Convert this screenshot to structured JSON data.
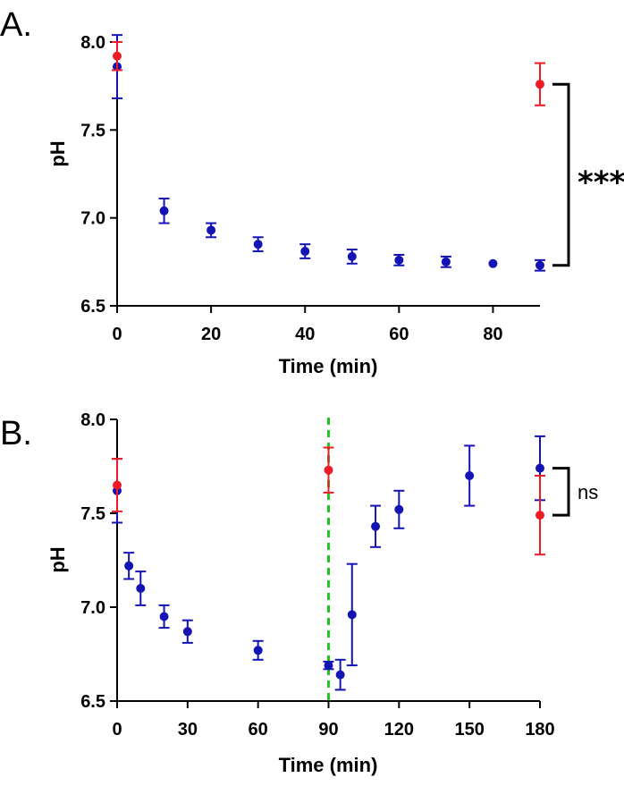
{
  "colors": {
    "blue": "#1414b4",
    "red": "#ee1c25",
    "green": "#22c41e",
    "axis": "#000000"
  },
  "chart_data": [
    {
      "panel_label": "A.",
      "type": "scatter",
      "xlabel": "Time (min)",
      "ylabel": "pH",
      "xlim": [
        0,
        90
      ],
      "ylim": [
        6.5,
        8.0
      ],
      "xticks": [
        0,
        20,
        40,
        60,
        80
      ],
      "yticks": [
        6.5,
        7.0,
        7.5,
        8.0
      ],
      "xtick_labels": [
        "0",
        "20",
        "40",
        "60",
        "80"
      ],
      "ytick_labels": [
        "6.5",
        "7.0",
        "7.5",
        "8.0"
      ],
      "series": [
        {
          "color": "#1414b4",
          "points": [
            {
              "x": 0,
              "y": 7.86,
              "err": 0.18
            },
            {
              "x": 10,
              "y": 7.04,
              "err": 0.07
            },
            {
              "x": 20,
              "y": 6.93,
              "err": 0.04
            },
            {
              "x": 30,
              "y": 6.85,
              "err": 0.04
            },
            {
              "x": 40,
              "y": 6.81,
              "err": 0.04
            },
            {
              "x": 50,
              "y": 6.78,
              "err": 0.04
            },
            {
              "x": 60,
              "y": 6.76,
              "err": 0.03
            },
            {
              "x": 70,
              "y": 6.75,
              "err": 0.03
            },
            {
              "x": 80,
              "y": 6.74,
              "err": 0.0
            },
            {
              "x": 90,
              "y": 6.73,
              "err": 0.03
            }
          ]
        },
        {
          "color": "#ee1c25",
          "points": [
            {
              "x": 0,
              "y": 7.92,
              "err": 0.08
            },
            {
              "x": 90,
              "y": 7.76,
              "err": 0.12
            }
          ]
        }
      ],
      "annotation": {
        "text": "***",
        "bracket_from": 7.76,
        "bracket_to": 6.73
      }
    },
    {
      "panel_label": "B.",
      "type": "scatter",
      "xlabel": "Time (min)",
      "ylabel": "pH",
      "xlim": [
        0,
        180
      ],
      "ylim": [
        6.5,
        8.0
      ],
      "xticks": [
        0,
        30,
        60,
        90,
        120,
        150,
        180
      ],
      "yticks": [
        6.5,
        7.0,
        7.5,
        8.0
      ],
      "xtick_labels": [
        "0",
        "30",
        "60",
        "90",
        "120",
        "150",
        "180"
      ],
      "ytick_labels": [
        "6.5",
        "7.0",
        "7.5",
        "8.0"
      ],
      "vline": {
        "x": 90,
        "color": "#22c41e",
        "style": "dashed"
      },
      "series": [
        {
          "color": "#1414b4",
          "points": [
            {
              "x": 0,
              "y": 7.62,
              "err": 0.17
            },
            {
              "x": 5,
              "y": 7.22,
              "err": 0.07
            },
            {
              "x": 10,
              "y": 7.1,
              "err": 0.09
            },
            {
              "x": 20,
              "y": 6.95,
              "err": 0.06
            },
            {
              "x": 30,
              "y": 6.87,
              "err": 0.06
            },
            {
              "x": 60,
              "y": 6.77,
              "err": 0.05
            },
            {
              "x": 90,
              "y": 6.69,
              "err": 0.02
            },
            {
              "x": 95,
              "y": 6.64,
              "err": 0.08
            },
            {
              "x": 100,
              "y": 6.96,
              "err": 0.27
            },
            {
              "x": 110,
              "y": 7.43,
              "err": 0.11
            },
            {
              "x": 120,
              "y": 7.52,
              "err": 0.1
            },
            {
              "x": 150,
              "y": 7.7,
              "err": 0.16
            },
            {
              "x": 180,
              "y": 7.74,
              "err": 0.17
            }
          ]
        },
        {
          "color": "#ee1c25",
          "points": [
            {
              "x": 0,
              "y": 7.65,
              "err": 0.14
            },
            {
              "x": 90,
              "y": 7.73,
              "err": 0.12
            },
            {
              "x": 180,
              "y": 7.49,
              "err": 0.21
            }
          ]
        }
      ],
      "annotation": {
        "text": "ns",
        "bracket_from": 7.74,
        "bracket_to": 7.49
      }
    }
  ]
}
